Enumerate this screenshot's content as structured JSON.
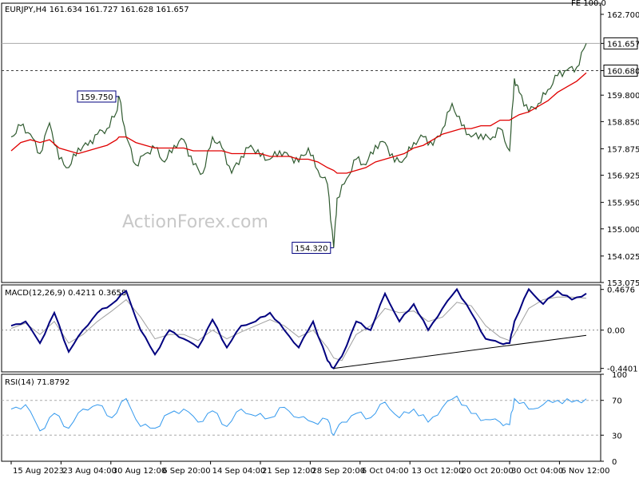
{
  "chart_data": [
    {
      "type": "line",
      "title": "EURJPY,H4  161.634 161.727 161.628 161.657",
      "note": "FE 100.0",
      "watermark": "ActionForex.com",
      "ylim": [
        153.075,
        163.1
      ],
      "yticks": [
        "162.700",
        "161.657",
        "160.680",
        "159.800",
        "158.850",
        "157.875",
        "156.925",
        "155.950",
        "155.000",
        "154.025",
        "153.075"
      ],
      "yticks_values": [
        162.7,
        161.657,
        160.68,
        159.8,
        158.85,
        157.875,
        156.925,
        155.95,
        155.0,
        154.025,
        153.075
      ],
      "boxed_yticks": [
        "161.657",
        "160.680"
      ],
      "levels": [
        {
          "value": 161.657,
          "style": "solid",
          "label": "161.657"
        },
        {
          "value": 160.68,
          "style": "dashed",
          "label": "160.680"
        }
      ],
      "annotations": [
        {
          "text": "159.750",
          "x": 22.5,
          "y": 159.75
        },
        {
          "text": "154.320",
          "x": 67.3,
          "y": 154.32
        }
      ],
      "x": [
        0,
        2,
        4,
        6,
        8,
        10,
        12,
        14,
        16,
        18,
        20,
        22,
        22.5,
        24,
        26,
        28,
        30,
        32,
        34,
        36,
        38,
        40,
        42,
        44,
        46,
        48,
        50,
        52,
        54,
        56,
        58,
        60,
        62,
        64,
        66,
        67.3,
        68,
        70,
        72,
        74,
        76,
        78,
        80,
        82,
        84,
        86,
        88,
        90,
        92,
        94,
        96,
        98,
        100,
        102,
        104,
        105,
        106,
        108,
        110,
        112,
        114,
        116,
        118,
        120
      ],
      "series": [
        {
          "values": [
            158.3,
            158.7,
            158.4,
            157.7,
            158.8,
            157.5,
            157.2,
            157.9,
            158.0,
            158.4,
            158.6,
            159.2,
            159.75,
            158.3,
            157.3,
            157.7,
            157.9,
            157.4,
            158.0,
            158.2,
            157.3,
            157.0,
            158.3,
            157.9,
            157.0,
            157.6,
            158.0,
            157.6,
            157.5,
            157.8,
            157.6,
            157.4,
            157.9,
            157.1,
            156.6,
            154.32,
            156.1,
            156.8,
            157.5,
            157.3,
            158.0,
            158.1,
            157.4,
            157.5,
            158.1,
            158.3,
            158.0,
            158.6,
            159.5,
            158.7,
            158.3,
            158.4,
            158.2,
            158.6,
            157.8,
            160.4,
            159.9,
            159.2,
            159.5,
            160.0,
            160.5,
            160.7,
            160.8,
            161.657
          ]
        },
        {
          "values": [
            157.8,
            158.1,
            158.2,
            158.1,
            158.2,
            157.9,
            157.8,
            157.7,
            157.8,
            157.9,
            158.0,
            158.2,
            158.3,
            158.3,
            158.1,
            158.0,
            157.9,
            157.9,
            157.9,
            157.9,
            157.8,
            157.8,
            157.8,
            157.8,
            157.7,
            157.7,
            157.7,
            157.7,
            157.6,
            157.6,
            157.6,
            157.5,
            157.5,
            157.4,
            157.2,
            157.1,
            157.0,
            157.0,
            157.1,
            157.2,
            157.4,
            157.5,
            157.6,
            157.7,
            157.9,
            158.0,
            158.2,
            158.4,
            158.5,
            158.6,
            158.6,
            158.7,
            158.7,
            158.9,
            158.9,
            159.0,
            159.1,
            159.2,
            159.4,
            159.6,
            159.9,
            160.1,
            160.3,
            160.6
          ]
        }
      ]
    },
    {
      "type": "line",
      "title": "MACD(12,26,9) 0.4211 0.3658",
      "ylim": [
        -0.48,
        0.52
      ],
      "yticks": [
        "0.4676",
        "0.00",
        "-0.4401"
      ],
      "yticks_values": [
        0.4676,
        0.0,
        -0.4401
      ],
      "trendline": {
        "x": [
          67.3,
          120
        ],
        "y": [
          -0.44,
          -0.06
        ]
      },
      "x": [
        0,
        3,
        6,
        9,
        12,
        15,
        18,
        21,
        24,
        27,
        30,
        33,
        36,
        39,
        42,
        45,
        48,
        51,
        54,
        57,
        60,
        63,
        66,
        67.3,
        69,
        72,
        75,
        78,
        81,
        84,
        87,
        90,
        93,
        96,
        99,
        102,
        104,
        105,
        108,
        111,
        114,
        117,
        120
      ],
      "series": [
        {
          "values": [
            0.05,
            0.1,
            -0.15,
            0.2,
            -0.25,
            0.0,
            0.2,
            0.3,
            0.45,
            0.0,
            -0.28,
            0.0,
            -0.1,
            -0.2,
            0.12,
            -0.2,
            0.05,
            0.1,
            0.2,
            0.0,
            -0.2,
            0.1,
            -0.35,
            -0.44,
            -0.3,
            0.1,
            0.0,
            0.42,
            0.1,
            0.3,
            0.0,
            0.25,
            0.47,
            0.2,
            -0.1,
            -0.15,
            -0.15,
            0.1,
            0.47,
            0.3,
            0.45,
            0.35,
            0.4211
          ]
        },
        {
          "values": [
            0.02,
            0.08,
            -0.05,
            0.1,
            -0.15,
            -0.05,
            0.1,
            0.22,
            0.35,
            0.15,
            -0.1,
            -0.05,
            -0.05,
            -0.12,
            0.0,
            -0.1,
            -0.02,
            0.05,
            0.12,
            0.05,
            -0.08,
            0.0,
            -0.2,
            -0.32,
            -0.35,
            -0.05,
            0.05,
            0.25,
            0.2,
            0.22,
            0.1,
            0.15,
            0.32,
            0.28,
            0.05,
            -0.08,
            -0.12,
            -0.05,
            0.25,
            0.35,
            0.38,
            0.38,
            0.3658
          ]
        }
      ]
    },
    {
      "type": "line",
      "title": "RSI(14) 71.8792",
      "ylim": [
        0,
        100
      ],
      "yticks": [
        "100",
        "70",
        "30",
        "0"
      ],
      "yticks_values": [
        100,
        70,
        30,
        0
      ],
      "levels": [
        70,
        30
      ],
      "x": [
        0,
        3,
        6,
        9,
        12,
        15,
        18,
        21,
        24,
        27,
        30,
        33,
        36,
        39,
        42,
        45,
        48,
        51,
        54,
        57,
        60,
        63,
        66,
        67.3,
        69,
        72,
        75,
        78,
        81,
        84,
        87,
        90,
        93,
        96,
        99,
        102,
        104,
        105,
        108,
        111,
        114,
        117,
        120
      ],
      "series": [
        {
          "values": [
            60,
            65,
            35,
            55,
            38,
            60,
            65,
            50,
            72,
            40,
            38,
            55,
            60,
            45,
            58,
            40,
            60,
            52,
            50,
            62,
            50,
            45,
            48,
            30,
            45,
            55,
            50,
            68,
            50,
            60,
            45,
            62,
            75,
            55,
            48,
            45,
            42,
            72,
            60,
            65,
            70,
            68,
            71.88
          ]
        }
      ]
    }
  ],
  "x_axis": {
    "labels": [
      "15 Aug 2023",
      "23 Aug 04:00",
      "30 Aug 12:00",
      "6 Sep 20:00",
      "14 Sep 04:00",
      "21 Sep 12:00",
      "28 Sep 20:00",
      "6 Oct 04:00",
      "13 Oct 12:00",
      "20 Oct 20:00",
      "30 Oct 04:00",
      "6 Nov 12:00"
    ],
    "positions": [
      0,
      10.4,
      20.8,
      31.2,
      41.6,
      52.0,
      62.4,
      72.8,
      83.2,
      93.6,
      104.0,
      114.4
    ],
    "xlim": [
      -2,
      123
    ]
  },
  "colors": {
    "price": "#2f5a2f",
    "ma": "#e00000",
    "macd": "#00007f",
    "signal": "#a0a0a0",
    "rsi": "#3399ee",
    "grid_level": "#aaaaaa",
    "border": "#000000"
  }
}
